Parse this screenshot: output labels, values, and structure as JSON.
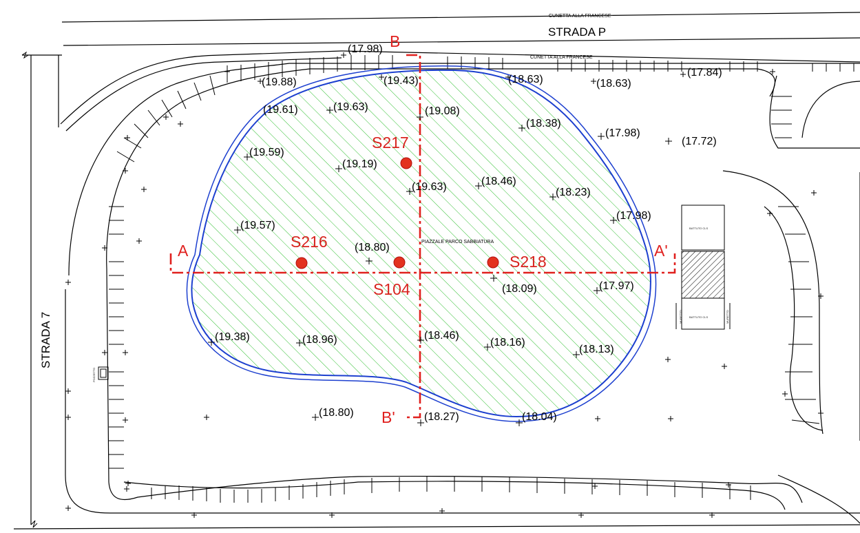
{
  "roads": {
    "strada_p": "STRADA P",
    "strada_7": "STRADA 7",
    "cunetta_top": "CUNETTA ALLA FRANCESE",
    "cunetta_mid": "CUNETTA ALLA FRANCESE"
  },
  "area_label": "PIAZZALE PARCO SABBIATURA",
  "sections": {
    "a": "A",
    "a_prime": "A'",
    "b": "B",
    "b_prime": "B'"
  },
  "samples": [
    "S217",
    "S216",
    "S104",
    "S218"
  ],
  "elevations": [
    "(17.98)",
    "(19.88)",
    "(19.43)",
    "(18.63)",
    "(18.63)",
    "(17.84)",
    "(19.61)",
    "(19.63)",
    "(19.08)",
    "(18.38)",
    "(17.98)",
    "(17.72)",
    "(19.59)",
    "(19.19)",
    "(19.63)",
    "(18.46)",
    "(18.23)",
    "(17.98)",
    "(19.57)",
    "(18.80)",
    "(18.09)",
    "(17.97)",
    "(19.38)",
    "(18.96)",
    "(18.46)",
    "(18.16)",
    "(18.13)",
    "(18.80)",
    "(18.27)",
    "(18.04)"
  ],
  "small_labels": {
    "battuto_top": "BATTUTO CLS",
    "battuto_bottom": "BATTUTO CLS",
    "muretto_left": "MURETTO",
    "muretto_right": "MURETTO",
    "pozzetto": "POZZETTO"
  }
}
